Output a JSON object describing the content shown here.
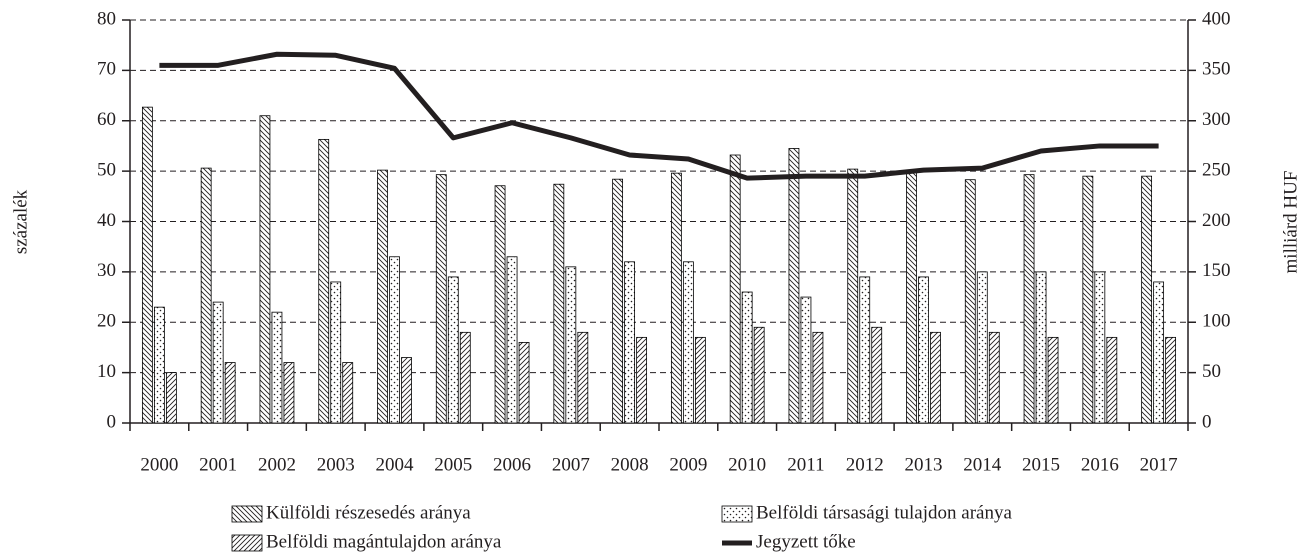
{
  "chart_data": {
    "type": "bar",
    "ylabel": "százalék",
    "y2label": "milliárd HUF",
    "categories": [
      "2000",
      "2001",
      "2002",
      "2003",
      "2004",
      "2005",
      "2006",
      "2007",
      "2008",
      "2009",
      "2010",
      "2011",
      "2012",
      "2013",
      "2014",
      "2015",
      "2016",
      "2017"
    ],
    "series": [
      {
        "name": "Külföldi részesedés aránya",
        "type": "bar",
        "color": "#000000",
        "pattern": "back-hatch",
        "values": [
          62.7,
          50.6,
          61,
          56.3,
          50.2,
          49.3,
          47.1,
          47.4,
          48.4,
          49.6,
          53.2,
          54.5,
          50.4,
          49.9,
          48.3,
          49.3,
          49,
          49
        ]
      },
      {
        "name": "Belföldi társasági tulajdon aránya",
        "type": "bar",
        "color": "#000000",
        "pattern": "dots",
        "values": [
          23,
          24,
          22,
          28,
          33,
          29,
          33,
          31,
          32,
          32,
          26,
          25,
          29,
          29,
          30,
          30,
          30,
          28
        ]
      },
      {
        "name": "Belföldi magántulajdon aránya",
        "type": "bar",
        "color": "#000000",
        "pattern": "forward-hatch",
        "values": [
          10,
          12,
          12,
          12,
          13,
          18,
          16,
          18,
          17,
          17,
          19,
          18,
          19,
          18,
          18,
          17,
          17,
          17
        ]
      },
      {
        "name": "Jegyzett tőke",
        "type": "line",
        "axis": "y2",
        "color": "#231f20",
        "values": [
          355,
          355,
          366,
          365,
          352,
          283,
          298,
          283,
          266,
          262,
          243,
          245,
          245,
          251,
          253,
          270,
          275,
          275
        ]
      }
    ],
    "ylim": [
      0,
      80
    ],
    "yticks": [
      0,
      10,
      20,
      30,
      40,
      50,
      60,
      70,
      80
    ],
    "y2lim": [
      0,
      400
    ],
    "y2ticks": [
      0,
      50,
      100,
      150,
      200,
      250,
      300,
      350,
      400
    ],
    "grid": true
  }
}
